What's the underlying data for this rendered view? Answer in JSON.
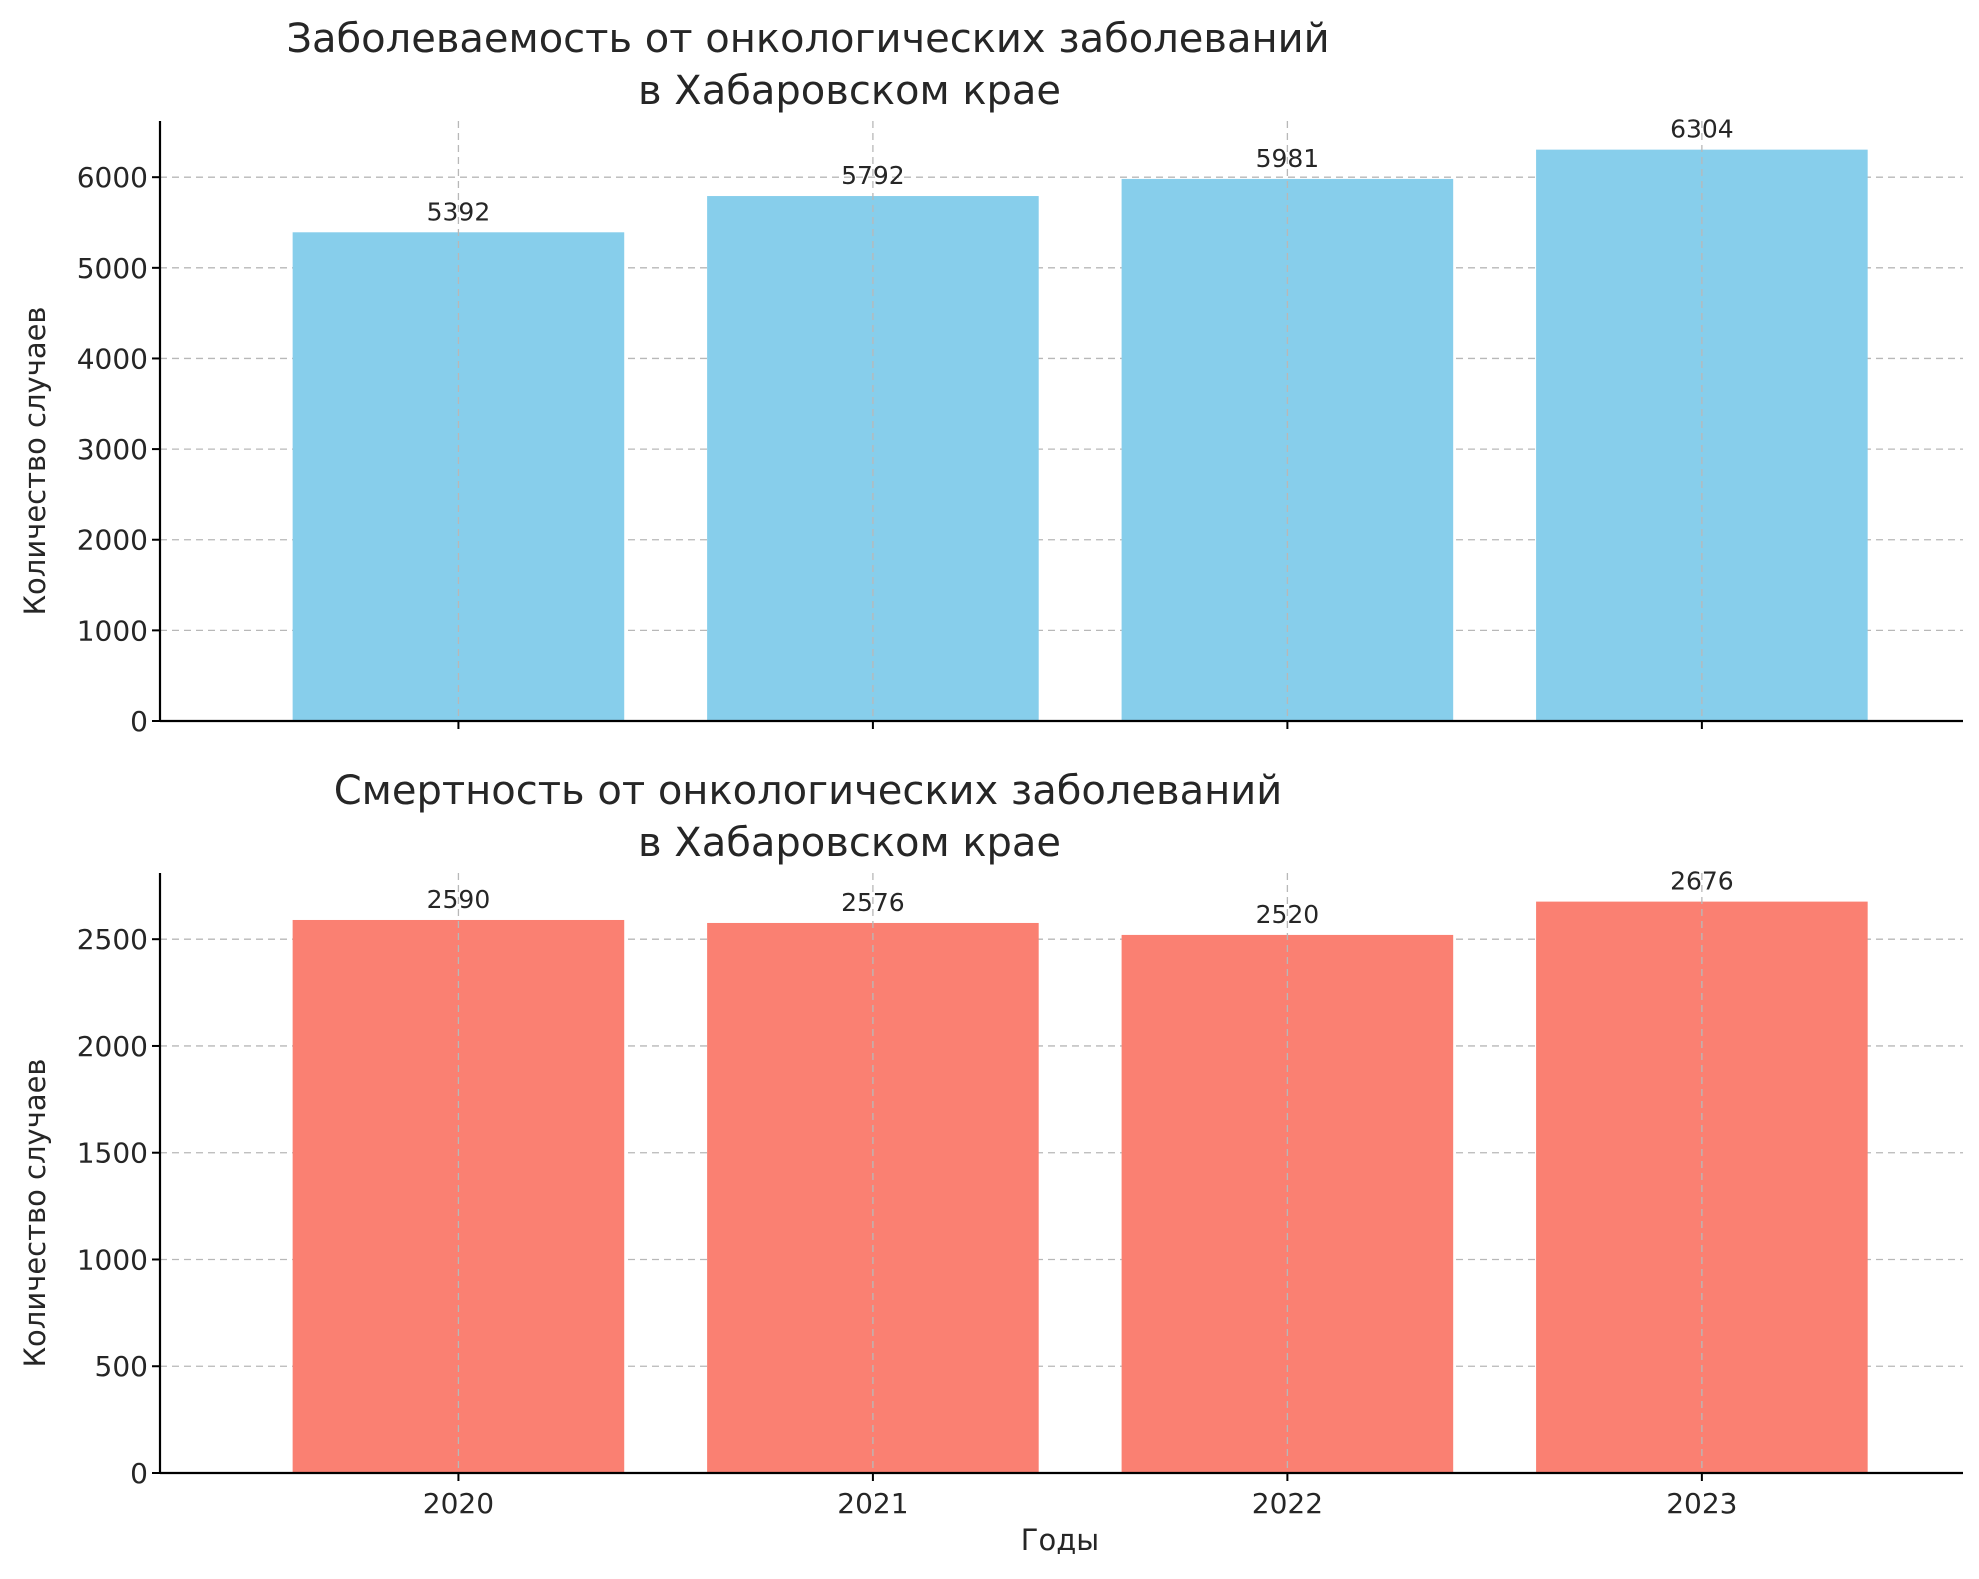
{
  "chart_data": [
    {
      "type": "bar",
      "title_lines": [
        "Заболеваемость от онкологических заболеваний",
        "в Хабаровском крае"
      ],
      "xlabel": "",
      "ylabel": "Количество случаев",
      "categories": [
        "2020",
        "2021",
        "2022",
        "2023"
      ],
      "values": [
        5392,
        5792,
        5981,
        6304
      ],
      "ylim": [
        0,
        6620
      ],
      "yticks": [
        0,
        1000,
        2000,
        3000,
        4000,
        5000,
        6000
      ],
      "color": "#87ceeb",
      "grid": true
    },
    {
      "type": "bar",
      "title_lines": [
        "Смертность от онкологических заболеваний",
        "в Хабаровском крае"
      ],
      "xlabel": "Годы",
      "ylabel": "Количество случаев",
      "categories": [
        "2020",
        "2021",
        "2022",
        "2023"
      ],
      "values": [
        2590,
        2576,
        2520,
        2676
      ],
      "ylim": [
        0,
        2810
      ],
      "yticks": [
        0,
        500,
        1000,
        1500,
        2000,
        2500
      ],
      "color": "#fa8072",
      "grid": true
    }
  ]
}
